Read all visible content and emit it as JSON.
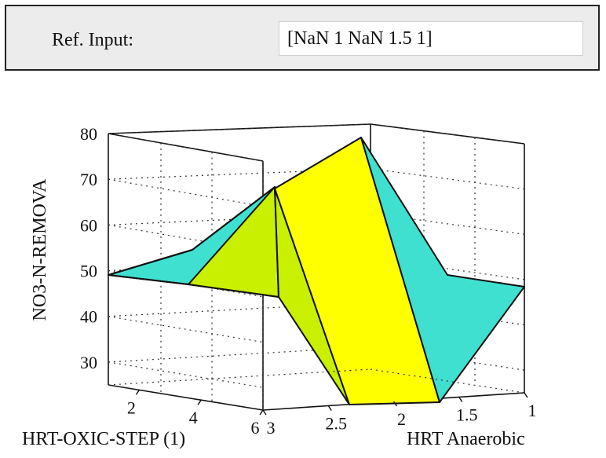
{
  "ref_panel": {
    "label": "Ref. Input:",
    "value": "[NaN 1 NaN 1.5 1]"
  },
  "chart_data": {
    "type": "surface",
    "xlabel": "HRT-OXIC-STEP (1)",
    "ylabel": "HRT Anaerobic",
    "zlabel": "NO3-N-REMOVA",
    "x_ticks": [
      "2",
      "4",
      "6"
    ],
    "y_ticks": [
      "3",
      "2.5",
      "2",
      "1.5",
      "1"
    ],
    "z_ticks": [
      "30",
      "40",
      "50",
      "60",
      "70",
      "80"
    ],
    "xlim": [
      1,
      6
    ],
    "ylim": [
      1,
      3
    ],
    "zlim": [
      25,
      80
    ],
    "grid": true,
    "colors": {
      "high": "#ffff00",
      "mid": "#c8f000",
      "low": "#40e0d0",
      "edge": "#111111"
    }
  }
}
